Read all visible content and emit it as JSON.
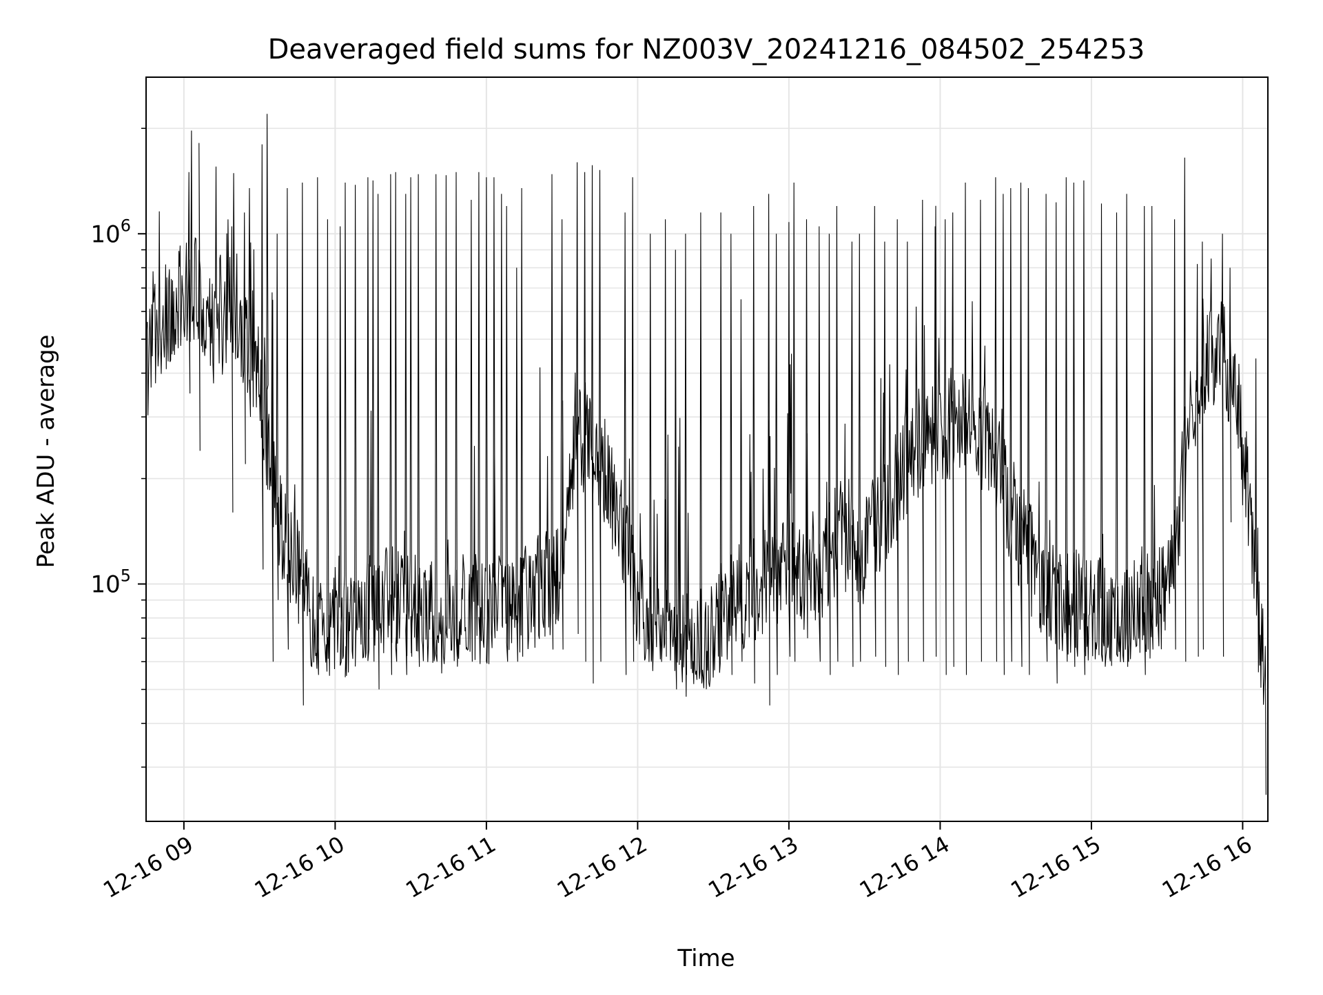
{
  "chart_data": {
    "type": "line",
    "title": "Deaveraged field sums for NZ003V_20241216_084502_254253",
    "xlabel": "Time",
    "ylabel": "Peak ADU - average",
    "yscale": "log",
    "ylim": [
      21000,
      2800000
    ],
    "xlim": [
      "2024-12-16 08:45",
      "2024-12-16 16:10"
    ],
    "grid": true,
    "legend": "none",
    "colors": {
      "line": "#000000",
      "grid": "#e5e5e5",
      "axes": "#000000"
    },
    "x_ticks": [
      {
        "t": "2024-12-16 09:00",
        "label": "12-16 09"
      },
      {
        "t": "2024-12-16 10:00",
        "label": "12-16 10"
      },
      {
        "t": "2024-12-16 11:00",
        "label": "12-16 11"
      },
      {
        "t": "2024-12-16 12:00",
        "label": "12-16 12"
      },
      {
        "t": "2024-12-16 13:00",
        "label": "12-16 13"
      },
      {
        "t": "2024-12-16 14:00",
        "label": "12-16 14"
      },
      {
        "t": "2024-12-16 15:00",
        "label": "12-16 15"
      },
      {
        "t": "2024-12-16 16:00",
        "label": "12-16 16"
      }
    ],
    "y_ticks": [
      {
        "value": 100000,
        "base": "10",
        "exp": "5"
      },
      {
        "value": 1000000,
        "base": "10",
        "exp": "6"
      }
    ],
    "series": [
      {
        "x": [
          "2024-12-16 08:45",
          "2024-12-16 08:55",
          "2024-12-16 09:05",
          "2024-12-16 09:12",
          "2024-12-16 09:20",
          "2024-12-16 09:30",
          "2024-12-16 09:38",
          "2024-12-16 09:45",
          "2024-12-16 09:52",
          "2024-12-16 10:00",
          "2024-12-16 10:10",
          "2024-12-16 10:20",
          "2024-12-16 10:30",
          "2024-12-16 10:40",
          "2024-12-16 10:50",
          "2024-12-16 11:00",
          "2024-12-16 11:10",
          "2024-12-16 11:20",
          "2024-12-16 11:30",
          "2024-12-16 11:35",
          "2024-12-16 11:40",
          "2024-12-16 11:50",
          "2024-12-16 12:00",
          "2024-12-16 12:10",
          "2024-12-16 12:20",
          "2024-12-16 12:30",
          "2024-12-16 12:40",
          "2024-12-16 12:50",
          "2024-12-16 13:00",
          "2024-12-16 13:10",
          "2024-12-16 13:20",
          "2024-12-16 13:30",
          "2024-12-16 13:40",
          "2024-12-16 13:50",
          "2024-12-16 14:00",
          "2024-12-16 14:10",
          "2024-12-16 14:20",
          "2024-12-16 14:30",
          "2024-12-16 14:40",
          "2024-12-16 14:50",
          "2024-12-16 15:00",
          "2024-12-16 15:10",
          "2024-12-16 15:20",
          "2024-12-16 15:30",
          "2024-12-16 15:40",
          "2024-12-16 15:50",
          "2024-12-16 15:57",
          "2024-12-16 16:03",
          "2024-12-16 16:07",
          "2024-12-16 16:09"
        ],
        "y": [
          420000,
          620000,
          700000,
          520000,
          640000,
          380000,
          150000,
          110000,
          78000,
          72000,
          85000,
          90000,
          88000,
          80000,
          78000,
          82000,
          90000,
          95000,
          110000,
          230000,
          280000,
          180000,
          90000,
          70000,
          65000,
          75000,
          90000,
          100000,
          110000,
          105000,
          140000,
          120000,
          170000,
          250000,
          280000,
          300000,
          250000,
          150000,
          100000,
          90000,
          85000,
          80000,
          85000,
          90000,
          320000,
          480000,
          380000,
          150000,
          70000,
          60000
        ]
      },
      {
        "x": [
          "2024-12-16 09:02",
          "2024-12-16 09:06",
          "2024-12-16 09:19",
          "2024-12-16 09:24",
          "2024-12-16 09:26",
          "2024-12-16 09:31",
          "2024-12-16 09:33",
          "2024-12-16 09:35",
          "2024-12-16 09:37",
          "2024-12-16 09:41",
          "2024-12-16 09:47",
          "2024-12-16 09:53",
          "2024-12-16 09:57",
          "2024-12-16 10:02",
          "2024-12-16 10:04",
          "2024-12-16 10:08",
          "2024-12-16 10:13",
          "2024-12-16 10:15",
          "2024-12-16 10:17",
          "2024-12-16 10:22",
          "2024-12-16 10:24",
          "2024-12-16 10:28",
          "2024-12-16 10:30",
          "2024-12-16 10:33",
          "2024-12-16 10:40",
          "2024-12-16 10:44",
          "2024-12-16 10:48",
          "2024-12-16 10:54",
          "2024-12-16 10:57",
          "2024-12-16 11:00",
          "2024-12-16 11:03",
          "2024-12-16 11:06",
          "2024-12-16 11:08",
          "2024-12-16 11:12",
          "2024-12-16 11:14",
          "2024-12-16 11:26",
          "2024-12-16 11:30",
          "2024-12-16 11:36",
          "2024-12-16 11:39",
          "2024-12-16 11:42",
          "2024-12-16 11:45",
          "2024-12-16 11:55",
          "2024-12-16 11:58",
          "2024-12-16 12:05",
          "2024-12-16 12:11",
          "2024-12-16 12:15",
          "2024-12-16 12:19",
          "2024-12-16 12:25",
          "2024-12-16 12:33",
          "2024-12-16 12:37",
          "2024-12-16 12:41",
          "2024-12-16 12:46",
          "2024-12-16 12:52",
          "2024-12-16 12:55",
          "2024-12-16 13:00",
          "2024-12-16 13:02",
          "2024-12-16 13:07",
          "2024-12-16 13:12",
          "2024-12-16 13:16",
          "2024-12-16 13:19",
          "2024-12-16 13:25",
          "2024-12-16 13:28",
          "2024-12-16 13:34",
          "2024-12-16 13:38",
          "2024-12-16 13:43",
          "2024-12-16 13:47",
          "2024-12-16 13:53",
          "2024-12-16 13:58",
          "2024-12-16 14:02",
          "2024-12-16 14:05",
          "2024-12-16 14:10",
          "2024-12-16 14:16",
          "2024-12-16 14:22",
          "2024-12-16 14:25",
          "2024-12-16 14:28",
          "2024-12-16 14:32",
          "2024-12-16 14:35",
          "2024-12-16 14:42",
          "2024-12-16 14:46",
          "2024-12-16 14:50",
          "2024-12-16 14:53",
          "2024-12-16 14:57",
          "2024-12-16 15:04",
          "2024-12-16 15:10",
          "2024-12-16 15:14",
          "2024-12-16 15:21",
          "2024-12-16 15:24",
          "2024-12-16 15:33",
          "2024-12-16 15:37",
          "2024-12-16 15:42",
          "2024-12-16 15:44",
          "2024-12-16 15:52",
          "2024-12-16 15:55"
        ],
        "high": [
          1500000,
          900000,
          1050000,
          1150000,
          1350000,
          1800000,
          2200000,
          680000,
          1000000,
          1350000,
          1400000,
          1450000,
          1100000,
          1050000,
          1400000,
          1380000,
          1450000,
          1420000,
          1300000,
          1480000,
          1500000,
          1300000,
          1450000,
          1480000,
          1480000,
          1470000,
          1500000,
          1250000,
          1500000,
          1450000,
          1450000,
          1300000,
          1200000,
          800000,
          1350000,
          1480000,
          1100000,
          1600000,
          1500000,
          1570000,
          1520000,
          1150000,
          1450000,
          1000000,
          1100000,
          900000,
          1000000,
          1150000,
          1150000,
          1000000,
          650000,
          1200000,
          1300000,
          1000000,
          1080000,
          1400000,
          1100000,
          1050000,
          1000000,
          1200000,
          950000,
          1000000,
          1200000,
          950000,
          1100000,
          950000,
          1250000,
          1050000,
          1100000,
          1150000,
          1400000,
          1250000,
          1450000,
          1300000,
          1350000,
          1400000,
          1350000,
          1300000,
          1230000,
          1450000,
          1400000,
          1420000,
          1220000,
          1150000,
          1300000,
          1200000,
          1200000,
          1100000,
          1650000,
          820000,
          950000,
          1000000,
          800000
        ],
        "low": [
          350000,
          240000,
          160000,
          220000,
          300000,
          110000,
          370000,
          60000,
          90000,
          65000,
          45000,
          55000,
          70000,
          60000,
          65000,
          80000,
          65000,
          60000,
          50000,
          55000,
          60000,
          55000,
          62000,
          58000,
          60000,
          70000,
          62000,
          60000,
          70000,
          80000,
          70000,
          75000,
          60000,
          60000,
          62000,
          65000,
          65000,
          72000,
          60000,
          52000,
          60000,
          55000,
          60000,
          60000,
          62000,
          50000,
          55000,
          52000,
          62000,
          55000,
          60000,
          52000,
          45000,
          55000,
          62000,
          60000,
          70000,
          60000,
          55000,
          60000,
          58000,
          60000,
          62000,
          58000,
          55000,
          60000,
          60000,
          62000,
          55000,
          58000,
          55000,
          60000,
          60000,
          55000,
          60000,
          58000,
          55000,
          60000,
          52000,
          60000,
          58000,
          55000,
          60000,
          62000,
          58000,
          55000,
          65000,
          65000,
          60000,
          62000,
          65000,
          62000,
          150000
        ]
      }
    ]
  }
}
